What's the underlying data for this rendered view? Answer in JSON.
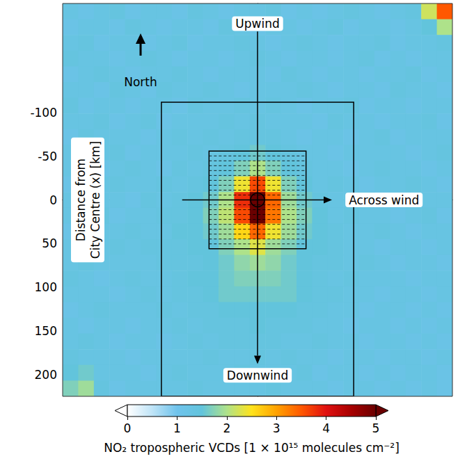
{
  "chart_data": {
    "type": "heatmap",
    "ylabel": "Distance from City Centre (x) [km]",
    "xlim": [
      -225,
      225
    ],
    "ylim": [
      225,
      -225
    ],
    "yticks": [
      -100,
      -50,
      0,
      50,
      100,
      150,
      200
    ],
    "tick_labels": "y",
    "north_label": "North",
    "cell_x": [
      -216,
      -198,
      -180,
      -162,
      -144,
      -126,
      -108,
      -90,
      -72,
      -54,
      -36,
      -18,
      0,
      18,
      36,
      54,
      72,
      90,
      108,
      126,
      144,
      162,
      180,
      198,
      216
    ],
    "cell_y": [
      -216,
      -198,
      -180,
      -162,
      -144,
      -126,
      -108,
      -90,
      -72,
      -54,
      -36,
      -18,
      0,
      18,
      36,
      54,
      72,
      90,
      108,
      126,
      144,
      162,
      180,
      198,
      216
    ],
    "cells": [
      [
        1.3,
        1.2,
        1.3,
        1.4,
        1.2,
        1.3,
        1.3,
        1.2,
        1.4,
        1.3,
        1.2,
        1.3,
        1.3,
        1.4,
        1.2,
        1.3,
        1.2,
        1.3,
        1.4,
        1.3,
        1.2,
        1.3,
        1.4,
        2.2,
        3.5
      ],
      [
        1.2,
        1.3,
        1.3,
        1.2,
        1.4,
        1.3,
        1.2,
        1.3,
        1.3,
        1.2,
        1.4,
        1.3,
        1.2,
        1.3,
        1.3,
        1.2,
        1.3,
        1.4,
        1.2,
        1.3,
        1.3,
        1.2,
        1.3,
        1.5,
        2.0
      ],
      [
        1.3,
        1.4,
        1.2,
        1.3,
        1.3,
        1.2,
        1.3,
        1.4,
        1.2,
        1.3,
        1.3,
        1.4,
        1.3,
        1.2,
        1.3,
        1.4,
        1.3,
        1.2,
        1.3,
        1.3,
        1.4,
        1.2,
        1.3,
        1.3,
        1.4
      ],
      [
        1.4,
        1.3,
        1.3,
        1.2,
        1.3,
        1.4,
        1.3,
        1.2,
        1.3,
        1.3,
        1.2,
        1.3,
        1.4,
        1.3,
        1.2,
        1.3,
        1.3,
        1.2,
        1.3,
        1.4,
        1.2,
        1.3,
        1.2,
        1.3,
        1.3
      ],
      [
        1.2,
        1.3,
        1.4,
        1.3,
        1.2,
        1.3,
        1.3,
        1.4,
        1.3,
        1.2,
        1.3,
        1.3,
        1.3,
        1.2,
        1.4,
        1.3,
        1.2,
        1.3,
        1.3,
        1.2,
        1.3,
        1.3,
        1.4,
        1.2,
        1.3
      ],
      [
        1.3,
        1.3,
        1.2,
        1.4,
        1.3,
        1.2,
        1.4,
        1.3,
        1.3,
        1.4,
        1.3,
        1.2,
        1.3,
        1.3,
        1.3,
        1.4,
        1.3,
        1.2,
        1.3,
        1.3,
        1.2,
        1.4,
        1.3,
        1.3,
        1.2
      ],
      [
        1.4,
        1.2,
        1.3,
        1.3,
        1.2,
        1.3,
        1.3,
        1.2,
        1.4,
        1.3,
        1.3,
        1.4,
        1.3,
        1.4,
        1.3,
        1.2,
        1.3,
        1.3,
        1.4,
        1.2,
        1.3,
        1.3,
        1.2,
        1.3,
        1.3
      ],
      [
        1.3,
        1.3,
        1.4,
        1.2,
        1.3,
        1.4,
        1.2,
        1.3,
        1.3,
        1.3,
        1.4,
        1.3,
        1.4,
        1.3,
        1.3,
        1.3,
        1.2,
        1.4,
        1.3,
        1.3,
        1.2,
        1.3,
        1.3,
        1.4,
        1.2
      ],
      [
        1.2,
        1.4,
        1.3,
        1.3,
        1.3,
        1.2,
        1.3,
        1.4,
        1.3,
        1.4,
        1.3,
        1.4,
        1.4,
        1.4,
        1.3,
        1.2,
        1.3,
        1.3,
        1.2,
        1.3,
        1.4,
        1.2,
        1.3,
        1.3,
        1.3
      ],
      [
        1.3,
        1.2,
        1.3,
        1.4,
        1.2,
        1.3,
        1.3,
        1.3,
        1.4,
        1.3,
        1.4,
        1.5,
        1.6,
        1.5,
        1.4,
        1.3,
        1.3,
        1.2,
        1.3,
        1.3,
        1.3,
        1.3,
        1.2,
        1.3,
        1.4
      ],
      [
        1.3,
        1.3,
        1.2,
        1.3,
        1.4,
        1.3,
        1.2,
        1.4,
        1.3,
        1.4,
        1.5,
        1.7,
        2.0,
        1.7,
        1.5,
        1.4,
        1.3,
        1.3,
        1.2,
        1.3,
        1.4,
        1.3,
        1.3,
        1.2,
        1.3
      ],
      [
        1.2,
        1.3,
        1.3,
        1.4,
        1.3,
        1.3,
        1.4,
        1.3,
        1.4,
        1.5,
        1.7,
        2.4,
        3.6,
        2.4,
        1.7,
        1.5,
        1.3,
        1.4,
        1.3,
        1.2,
        1.3,
        1.3,
        1.4,
        1.3,
        1.2
      ],
      [
        1.3,
        1.4,
        1.3,
        1.3,
        1.2,
        1.4,
        1.3,
        1.4,
        1.5,
        1.6,
        2.0,
        3.8,
        5.6,
        3.4,
        1.9,
        1.6,
        1.4,
        1.3,
        1.3,
        1.4,
        1.2,
        1.3,
        1.3,
        1.3,
        1.3
      ],
      [
        1.3,
        1.3,
        1.4,
        1.2,
        1.3,
        1.3,
        1.4,
        1.4,
        1.5,
        1.7,
        2.1,
        3.6,
        5.2,
        3.3,
        2.0,
        1.7,
        1.5,
        1.3,
        1.4,
        1.3,
        1.3,
        1.2,
        1.3,
        1.4,
        1.2
      ],
      [
        1.2,
        1.3,
        1.3,
        1.3,
        1.4,
        1.3,
        1.3,
        1.5,
        1.5,
        1.6,
        1.9,
        2.6,
        3.4,
        2.4,
        1.9,
        1.6,
        1.5,
        1.4,
        1.3,
        1.3,
        1.4,
        1.3,
        1.2,
        1.3,
        1.3
      ],
      [
        1.3,
        1.2,
        1.3,
        1.4,
        1.3,
        1.4,
        1.4,
        1.4,
        1.5,
        1.5,
        1.7,
        2.0,
        2.3,
        1.9,
        1.7,
        1.5,
        1.5,
        1.4,
        1.3,
        1.3,
        1.2,
        1.3,
        1.3,
        1.2,
        1.3
      ],
      [
        1.3,
        1.4,
        1.3,
        1.3,
        1.3,
        1.3,
        1.4,
        1.4,
        1.4,
        1.5,
        1.6,
        1.8,
        1.9,
        1.8,
        1.6,
        1.5,
        1.4,
        1.4,
        1.3,
        1.4,
        1.3,
        1.2,
        1.3,
        1.3,
        1.2
      ],
      [
        1.4,
        1.3,
        1.2,
        1.3,
        1.4,
        1.3,
        1.3,
        1.4,
        1.5,
        1.5,
        1.6,
        1.7,
        1.7,
        1.7,
        1.6,
        1.5,
        1.4,
        1.3,
        1.4,
        1.3,
        1.3,
        1.3,
        1.2,
        1.3,
        1.3
      ],
      [
        1.3,
        1.3,
        1.3,
        1.2,
        1.3,
        1.4,
        1.3,
        1.4,
        1.4,
        1.5,
        1.6,
        1.6,
        1.6,
        1.6,
        1.6,
        1.5,
        1.4,
        1.4,
        1.3,
        1.3,
        1.2,
        1.3,
        1.3,
        1.2,
        1.3
      ],
      [
        1.2,
        1.3,
        1.4,
        1.3,
        1.3,
        1.3,
        1.4,
        1.3,
        1.4,
        1.4,
        1.5,
        1.5,
        1.5,
        1.5,
        1.5,
        1.4,
        1.4,
        1.3,
        1.3,
        1.2,
        1.3,
        1.3,
        1.2,
        1.3,
        1.2
      ],
      [
        1.3,
        1.2,
        1.3,
        1.3,
        1.2,
        1.3,
        1.3,
        1.4,
        1.3,
        1.4,
        1.4,
        1.4,
        1.5,
        1.4,
        1.4,
        1.4,
        1.3,
        1.3,
        1.2,
        1.3,
        1.3,
        1.2,
        1.3,
        1.2,
        1.3
      ],
      [
        1.3,
        1.4,
        1.3,
        1.2,
        1.3,
        1.3,
        1.2,
        1.3,
        1.4,
        1.3,
        1.4,
        1.4,
        1.4,
        1.4,
        1.3,
        1.3,
        1.4,
        1.3,
        1.3,
        1.2,
        1.3,
        1.3,
        1.2,
        1.3,
        1.2
      ],
      [
        1.4,
        1.3,
        1.3,
        1.3,
        1.2,
        1.3,
        1.3,
        1.3,
        1.3,
        1.4,
        1.3,
        1.3,
        1.4,
        1.3,
        1.4,
        1.3,
        1.3,
        1.2,
        1.3,
        1.3,
        1.2,
        1.3,
        1.3,
        1.2,
        1.3
      ],
      [
        1.5,
        1.6,
        1.3,
        1.3,
        1.3,
        1.2,
        1.3,
        1.4,
        1.3,
        1.3,
        1.3,
        1.4,
        1.3,
        1.3,
        1.3,
        1.4,
        1.2,
        1.3,
        1.3,
        1.2,
        1.3,
        1.2,
        1.3,
        1.3,
        1.2
      ],
      [
        1.7,
        1.9,
        1.4,
        1.2,
        1.3,
        1.3,
        1.3,
        1.3,
        1.4,
        1.3,
        1.3,
        1.3,
        1.3,
        1.4,
        1.3,
        1.3,
        1.3,
        1.2,
        1.3,
        1.3,
        1.2,
        1.3,
        1.2,
        1.3,
        1.2
      ]
    ],
    "colorbar": {
      "label": "NO₂ tropospheric VCDs [1 × 10¹⁵ molecules cm⁻²]",
      "range": [
        0,
        5
      ],
      "ticks": [
        0,
        1,
        2,
        3,
        4,
        5
      ]
    },
    "boxes": [
      {
        "x": [
          -111,
          111
        ],
        "y": [
          -112,
          225
        ]
      },
      {
        "x": [
          -56,
          56
        ],
        "y": [
          -56,
          56
        ],
        "bands": 20
      }
    ],
    "arrows": [
      {
        "from": [
          0,
          -193
        ],
        "to": [
          0,
          188
        ]
      },
      {
        "from": [
          -87,
          0
        ],
        "to": [
          86,
          0
        ]
      }
    ],
    "circle": {
      "x": 0,
      "y": 0,
      "r": 8
    },
    "annotations": [
      {
        "text": "Upwind",
        "x": 0,
        "y": -202
      },
      {
        "text": "Downwind",
        "x": 0,
        "y": 201
      },
      {
        "text": "Across wind",
        "x": 146,
        "y": 0
      }
    ]
  }
}
